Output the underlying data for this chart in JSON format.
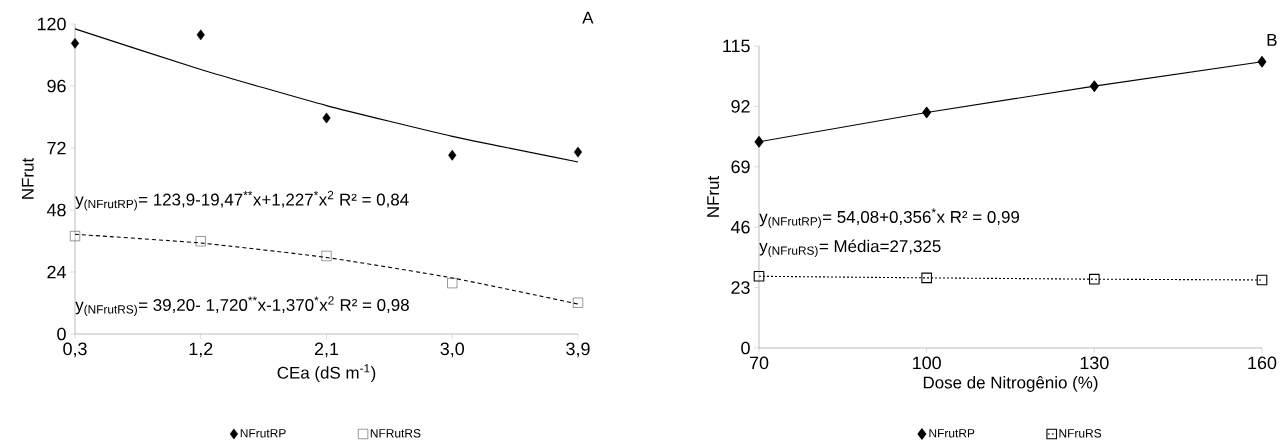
{
  "chart_data": [
    {
      "type": "scatter",
      "title": "A",
      "xlabel": "CEa (dS m$^{-1}$)",
      "ylabel": "NFrut",
      "x": [
        0.3,
        1.2,
        2.1,
        3.0,
        3.9
      ],
      "xlim": [
        0.3,
        3.9
      ],
      "ylim": [
        0,
        120
      ],
      "xticks": [
        {
          "value": 0.3,
          "label": "0,3"
        },
        {
          "value": 1.2,
          "label": "1,2"
        },
        {
          "value": 2.1,
          "label": "2,1"
        },
        {
          "value": 3.0,
          "label": "3,0"
        },
        {
          "value": 3.9,
          "label": "3,9"
        }
      ],
      "yticks": [
        0,
        24,
        48,
        72,
        96,
        120
      ],
      "legend": "bottom",
      "grid": false,
      "series": [
        {
          "name": "NFrutRP",
          "marker": "diamond",
          "color": "#000000",
          "values": [
            112.5,
            115.8,
            83.6,
            69.2,
            70.4
          ]
        },
        {
          "name": "NFRutRS",
          "marker": "square",
          "color": "#000000",
          "values": [
            37.9,
            35.9,
            30.2,
            19.7,
            12.1
          ]
        },
        {
          "type": "line",
          "marker": "none",
          "line_style": "solid",
          "color": "#000000",
          "values": [
            118.1,
            102.4,
            88.4,
            76.5,
            66.6
          ]
        },
        {
          "type": "line",
          "marker": "none",
          "line_style": "dashed",
          "color": "#000000",
          "values": [
            38.6,
            35.2,
            29.6,
            21.7,
            11.6
          ]
        }
      ],
      "annotations": [
        "y$_{(NFrutRP)}$= 123,9-19,47$^{**}$x+1,227$^{*}$x$^{2}$ R² = 0,84",
        "y$_{(NFrutRS)}$= 39,20- 1,720$^{**}$x-1,370$^{*}$x$^{2}$   R² = 0,98"
      ]
    },
    {
      "type": "line",
      "title": "B",
      "xlabel": "Dose de Nitrogênio (%)",
      "ylabel": "NFrut",
      "x": [
        70,
        100,
        130,
        160
      ],
      "xlim": [
        70,
        160
      ],
      "ylim": [
        0,
        115
      ],
      "xticks": [
        70,
        100,
        130,
        160
      ],
      "yticks": [
        0,
        23,
        46,
        69,
        92,
        115
      ],
      "legend": "bottom",
      "grid": false,
      "series": [
        {
          "name": "NFrutRP",
          "marker": "diamond",
          "line_style": "solid",
          "color": "#000000",
          "values": [
            78.5,
            89.7,
            99.7,
            109.0
          ]
        },
        {
          "name": "NFruRS",
          "marker": "square",
          "line_style": "dotted",
          "color": "#000000",
          "values": [
            27.3,
            26.7,
            26.2,
            25.9
          ]
        }
      ],
      "annotations": [
        "y$_{(NFrutRP)}$= 54,08+0,356$^{*}$x R² = 0,99",
        "y$_{(NFruRS)}$= Média=27,325"
      ]
    }
  ]
}
